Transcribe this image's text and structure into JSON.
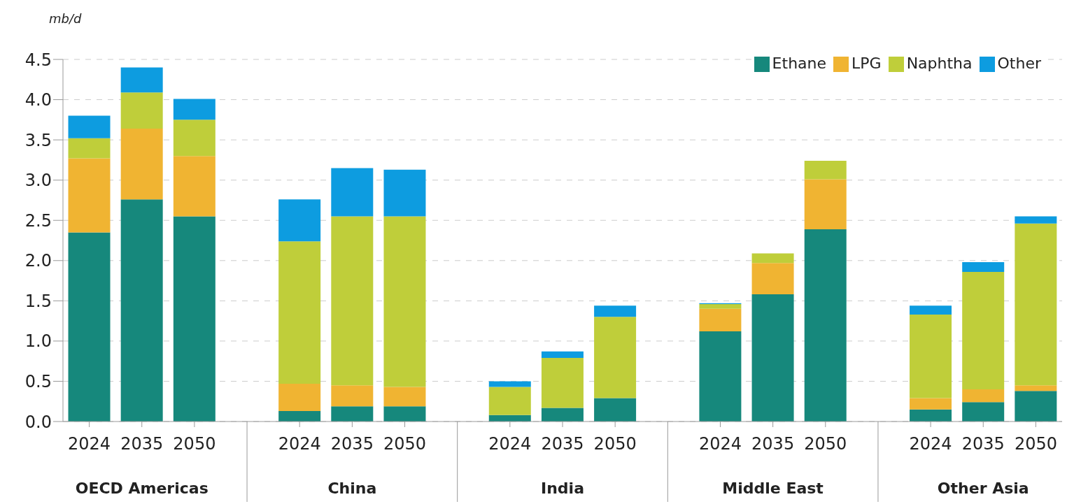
{
  "chart_data": {
    "type": "bar",
    "stacked": true,
    "ylabel": "mb/d",
    "categories": [
      "2024",
      "2035",
      "2050",
      "2024",
      "2035",
      "2050",
      "2024",
      "2035",
      "2050",
      "2024",
      "2035",
      "2050",
      "2024",
      "2035",
      "2050"
    ],
    "annotations": [
      "OECD Americas",
      "China",
      "India",
      "Middle East",
      "Other Asia"
    ],
    "series": [
      {
        "name": "Ethane",
        "color": "#16887c",
        "values": [
          2.35,
          2.76,
          2.55,
          0.13,
          0.19,
          0.19,
          0.08,
          0.17,
          0.29,
          1.12,
          1.58,
          2.39,
          0.15,
          0.24,
          0.38
        ]
      },
      {
        "name": "LPG",
        "color": "#f0b432",
        "values": [
          0.92,
          0.88,
          0.75,
          0.34,
          0.26,
          0.24,
          0,
          0,
          0,
          0.28,
          0.39,
          0.62,
          0.14,
          0.16,
          0.07
        ]
      },
      {
        "name": "Naphtha",
        "color": "#bfce3a",
        "values": [
          0.25,
          0.45,
          0.45,
          1.77,
          2.1,
          2.12,
          0.35,
          0.62,
          1.01,
          0.06,
          0.12,
          0.23,
          1.04,
          1.46,
          2.01
        ]
      },
      {
        "name": "Other",
        "color": "#0d9ce0",
        "values": [
          0.28,
          0.31,
          0.26,
          0.52,
          0.6,
          0.58,
          0.07,
          0.08,
          0.14,
          0.01,
          0,
          0,
          0.11,
          0.12,
          0.09
        ]
      }
    ],
    "ylim": [
      0,
      4.5
    ],
    "yticks": [
      {
        "value": 0,
        "label": "0.0"
      },
      {
        "value": 0.5,
        "label": "0.5"
      },
      {
        "value": 1,
        "label": "1.0"
      },
      {
        "value": 1.5,
        "label": "1.5"
      },
      {
        "value": 2,
        "label": "2.0"
      },
      {
        "value": 2.5,
        "label": "2.5"
      },
      {
        "value": 3,
        "label": "3.0"
      },
      {
        "value": 3.5,
        "label": "3.5"
      },
      {
        "value": 4,
        "label": "4.0"
      },
      {
        "value": 4.5,
        "label": "4.5"
      }
    ],
    "grid": "y",
    "legend": "top right"
  }
}
